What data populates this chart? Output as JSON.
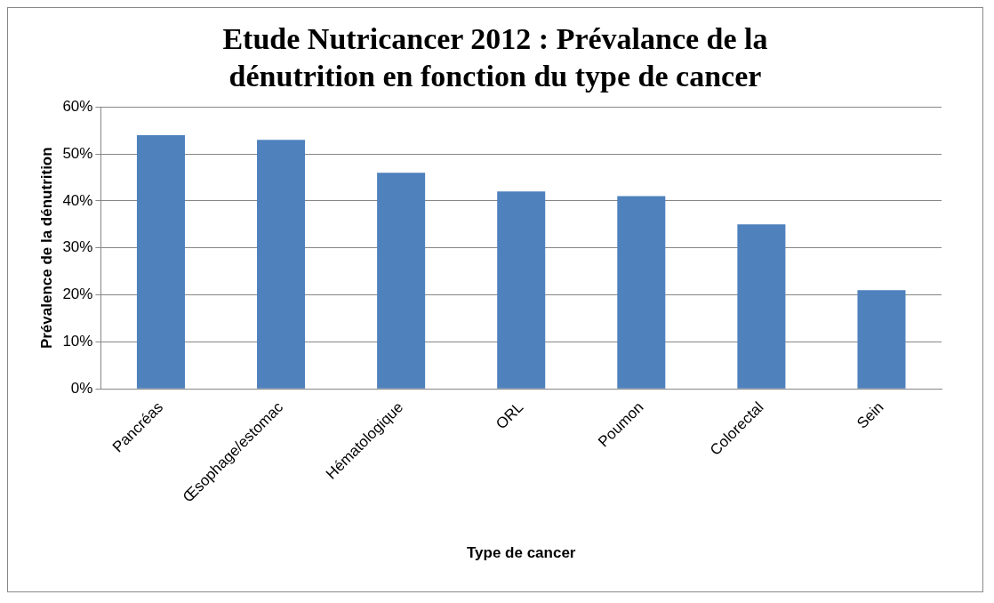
{
  "chart_data": {
    "type": "bar",
    "title": "Etude Nutricancer 2012 : Prévalance de la dénutrition en fonction du type de cancer",
    "xlabel": "Type de cancer",
    "ylabel": "Prévalence de la dénutrition",
    "categories": [
      "Pancréas",
      "Œsophage/estomac",
      "Hématologique",
      "ORL",
      "Poumon",
      "Colorectal",
      "Sein"
    ],
    "values": [
      54,
      53,
      46,
      42,
      41,
      35,
      21
    ],
    "color": "#4f81bd",
    "ylim": [
      0,
      60
    ],
    "yticks": [
      {
        "value": 0,
        "label": "0%"
      },
      {
        "value": 10,
        "label": "10%"
      },
      {
        "value": 20,
        "label": "20%"
      },
      {
        "value": 30,
        "label": "30%"
      },
      {
        "value": 40,
        "label": "40%"
      },
      {
        "value": 50,
        "label": "50%"
      },
      {
        "value": 60,
        "label": "60%"
      }
    ],
    "grid": "y",
    "legend": false
  }
}
